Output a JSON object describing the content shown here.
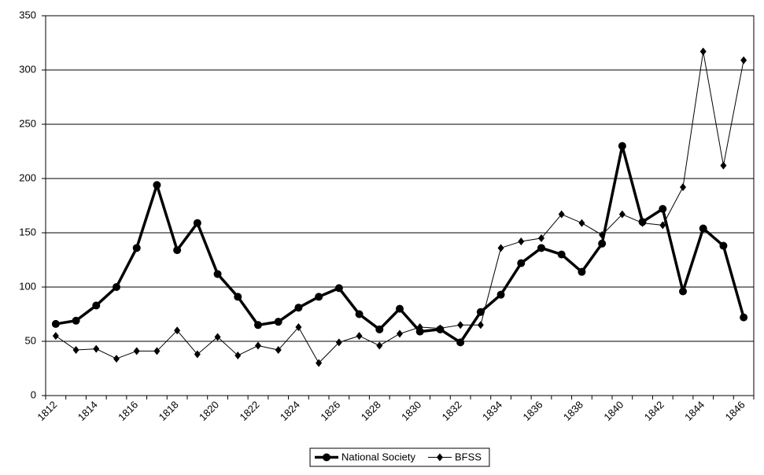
{
  "chart_data": {
    "type": "line",
    "categories": [
      "1812",
      null,
      "1814",
      null,
      "1816",
      null,
      "1818",
      null,
      "1820",
      null,
      "1822",
      null,
      "1824",
      null,
      "1826",
      null,
      "1828",
      null,
      "1830",
      null,
      "1832",
      null,
      "1834",
      null,
      "1836",
      null,
      "1838",
      null,
      "1840",
      null,
      "1842",
      null,
      "1844",
      null,
      "1846"
    ],
    "series": [
      {
        "name": "National Society",
        "color": "#000000",
        "values": [
          66,
          69,
          83,
          100,
          136,
          194,
          134,
          159,
          112,
          91,
          65,
          68,
          81,
          91,
          99,
          75,
          61,
          80,
          59,
          61,
          49,
          77,
          93,
          122,
          136,
          130,
          114,
          140,
          230,
          160,
          172,
          96,
          154,
          138,
          72
        ]
      },
      {
        "name": "BFSS",
        "color": "#000000",
        "values": [
          55,
          42,
          43,
          34,
          41,
          41,
          60,
          38,
          54,
          37,
          46,
          42,
          63,
          30,
          49,
          55,
          46,
          57,
          63,
          62,
          65,
          65,
          136,
          142,
          145,
          167,
          159,
          148,
          167,
          159,
          157,
          192,
          317,
          212,
          309
        ]
      }
    ],
    "ylim": [
      0,
      350
    ],
    "yticks": [
      0,
      50,
      100,
      150,
      200,
      250,
      300,
      350
    ],
    "grid": true,
    "legend": "bottom"
  }
}
